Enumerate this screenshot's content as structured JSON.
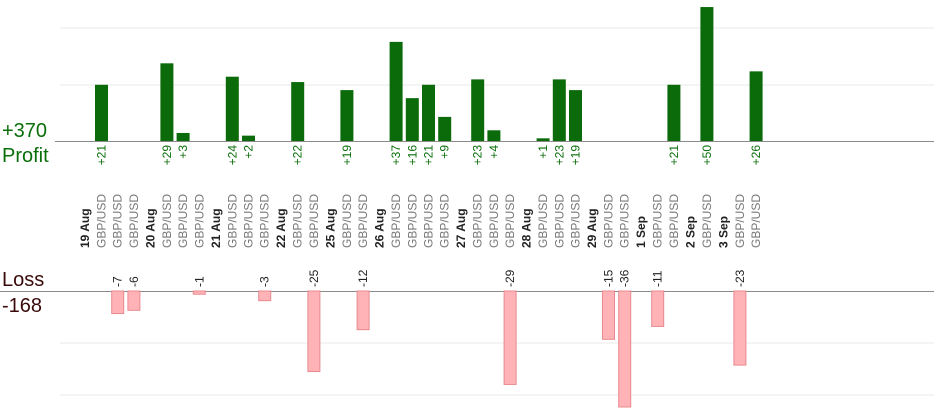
{
  "summary": {
    "profit_total": "+370",
    "profit_label": "Profit",
    "loss_label": "Loss",
    "loss_total": "-168"
  },
  "colors": {
    "profit_bar": "#0b6b0b",
    "loss_bar": "#ffb3b6",
    "loss_bar_border": "#e88a8f",
    "profit_text": "#0a6e0a",
    "loss_text": "#222222",
    "grid": "#e8e8e8",
    "axis": "#8a8a8a",
    "pair_text": "#777777",
    "date_text": "#222222"
  },
  "chart_data": {
    "type": "bar",
    "pair": "GBP/USD",
    "axis_max_profit": 50,
    "axis_max_loss": 36,
    "days": [
      {
        "date": "19 Aug",
        "trades": [
          21,
          -7,
          -6
        ]
      },
      {
        "date": "20 Aug",
        "trades": [
          29,
          3,
          -1
        ]
      },
      {
        "date": "21 Aug",
        "trades": [
          24,
          2,
          -3
        ]
      },
      {
        "date": "22 Aug",
        "trades": [
          22,
          -25
        ]
      },
      {
        "date": "25 Aug",
        "trades": [
          19,
          -12
        ]
      },
      {
        "date": "26 Aug",
        "trades": [
          37,
          16,
          21,
          9
        ]
      },
      {
        "date": "27 Aug",
        "trades": [
          23,
          4,
          -29
        ]
      },
      {
        "date": "28 Aug",
        "trades": [
          1,
          23,
          19
        ]
      },
      {
        "date": "29 Aug",
        "trades": [
          -15,
          -36
        ]
      },
      {
        "date": "1 Sep",
        "trades": [
          -11,
          21
        ]
      },
      {
        "date": "2 Sep",
        "trades": [
          50
        ]
      },
      {
        "date": "3 Sep",
        "trades": [
          -23,
          26
        ]
      }
    ]
  }
}
